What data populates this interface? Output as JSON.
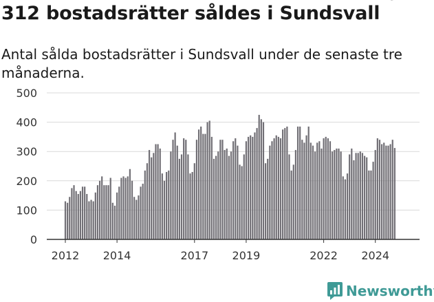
{
  "header": {
    "title": "312 bostadsrätter såldes i Sundsvall",
    "subtitle": "Antal sålda bostadsrätter i Sundsvall under de senaste tre månaderna."
  },
  "brand": {
    "name": "Newsworthy",
    "icon": "newsworthy-chart-icon",
    "color": "#3f9a96"
  },
  "chart_data": {
    "type": "bar",
    "title": "",
    "xlabel": "",
    "ylabel": "",
    "ylim": [
      0,
      500
    ],
    "yticks": [
      0,
      100,
      200,
      300,
      400,
      500
    ],
    "xticks": [
      {
        "label": "2012",
        "index": 0
      },
      {
        "label": "2014",
        "index": 24
      },
      {
        "label": "2017",
        "index": 60
      },
      {
        "label": "2019",
        "index": 84
      },
      {
        "label": "2022",
        "index": 120
      },
      {
        "label": "2024",
        "index": 144
      }
    ],
    "grid": true,
    "bar_color": "#716f75",
    "highlight_color": "#3f9a96",
    "highlight_index": 155,
    "highlight_label": "312",
    "values": [
      130,
      125,
      145,
      175,
      185,
      165,
      155,
      165,
      180,
      180,
      155,
      130,
      135,
      130,
      160,
      185,
      200,
      215,
      185,
      185,
      185,
      210,
      125,
      115,
      160,
      180,
      210,
      215,
      210,
      215,
      240,
      200,
      145,
      135,
      150,
      180,
      190,
      235,
      260,
      305,
      280,
      295,
      325,
      325,
      310,
      225,
      200,
      230,
      235,
      300,
      340,
      365,
      320,
      275,
      290,
      345,
      340,
      290,
      225,
      230,
      260,
      340,
      375,
      385,
      360,
      360,
      400,
      405,
      350,
      275,
      285,
      300,
      340,
      340,
      305,
      310,
      285,
      300,
      335,
      345,
      320,
      255,
      250,
      290,
      335,
      350,
      355,
      350,
      365,
      380,
      425,
      410,
      400,
      260,
      275,
      320,
      335,
      345,
      355,
      350,
      345,
      375,
      380,
      385,
      290,
      235,
      255,
      305,
      385,
      385,
      340,
      330,
      355,
      385,
      330,
      320,
      300,
      330,
      335,
      310,
      345,
      350,
      345,
      335,
      300,
      305,
      310,
      310,
      300,
      215,
      205,
      225,
      290,
      310,
      270,
      295,
      295,
      300,
      295,
      285,
      280,
      235,
      235,
      265,
      305,
      345,
      340,
      325,
      330,
      320,
      320,
      325,
      340,
      312
    ]
  }
}
